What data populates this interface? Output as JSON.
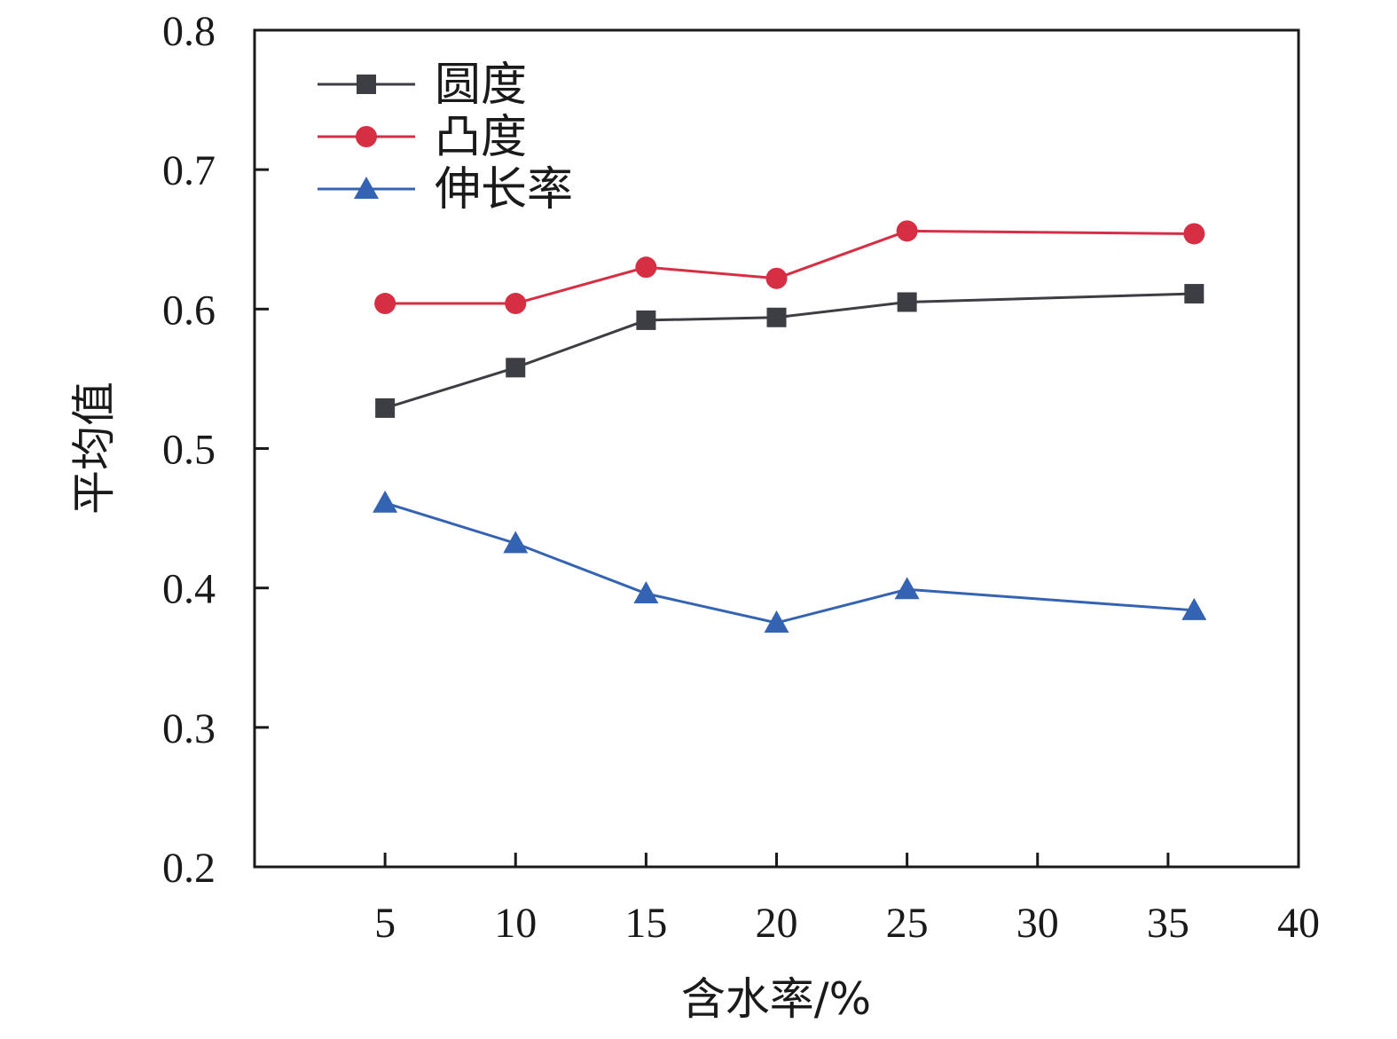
{
  "chart_data": {
    "type": "line",
    "xlabel": "含水率/%",
    "ylabel": "平均值",
    "xlim": [
      0,
      40
    ],
    "ylim": [
      0.2,
      0.8
    ],
    "x_ticks": [
      5,
      10,
      15,
      20,
      25,
      30,
      35,
      40
    ],
    "x_tick_labels": [
      "5",
      "10",
      "15",
      "20",
      "25",
      "30",
      "35",
      "40"
    ],
    "y_ticks": [
      0.2,
      0.3,
      0.4,
      0.5,
      0.6,
      0.7,
      0.8
    ],
    "y_tick_labels": [
      "0.2",
      "0.3",
      "0.4",
      "0.5",
      "0.6",
      "0.7",
      "0.8"
    ],
    "x": [
      5,
      10,
      15,
      20,
      25,
      36
    ],
    "grid": false,
    "legend_position": "top-left",
    "series": [
      {
        "name": "圆度",
        "marker": "square",
        "color": "#3d3d44",
        "values": [
          0.529,
          0.558,
          0.592,
          0.594,
          0.605,
          0.611
        ]
      },
      {
        "name": "凸度",
        "marker": "circle",
        "color": "#d62f43",
        "values": [
          0.604,
          0.604,
          0.63,
          0.622,
          0.656,
          0.654
        ]
      },
      {
        "name": "伸长率",
        "marker": "triangle",
        "color": "#3563b3",
        "values": [
          0.461,
          0.432,
          0.396,
          0.375,
          0.399,
          0.384
        ]
      }
    ]
  }
}
